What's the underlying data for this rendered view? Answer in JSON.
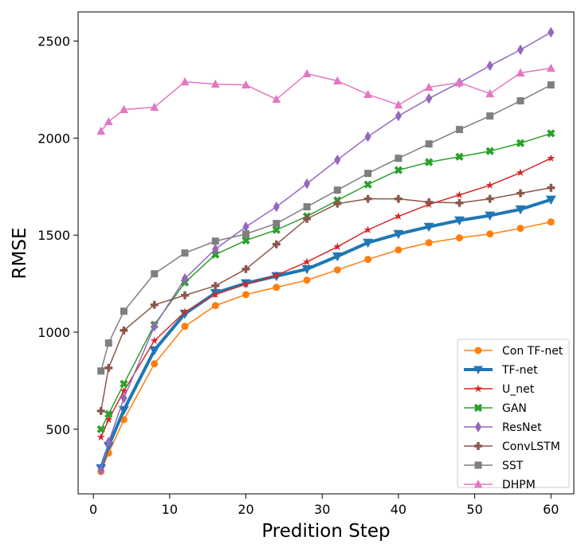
{
  "chart_data": {
    "type": "line",
    "title": "",
    "xlabel": "Predition Step",
    "ylabel": "RMSE",
    "xlim": [
      -2,
      63
    ],
    "ylim": [
      167,
      2650
    ],
    "xticks": [
      0,
      10,
      20,
      30,
      40,
      50,
      60
    ],
    "yticks": [
      500,
      1000,
      1500,
      2000,
      2500
    ],
    "grid": false,
    "legend_position": "lower-right",
    "x": [
      1,
      2,
      4,
      8,
      12,
      16,
      20,
      24,
      28,
      32,
      36,
      40,
      44,
      48,
      52,
      56,
      60
    ],
    "series": [
      {
        "name": "Con TF-net",
        "color": "#ff7f0e",
        "marker": "circle",
        "width": 1.5,
        "values": [
          282,
          377,
          549,
          837,
          1030,
          1137,
          1194,
          1231,
          1268,
          1321,
          1375,
          1424,
          1461,
          1486,
          1506,
          1535,
          1568
        ]
      },
      {
        "name": "TF-net",
        "color": "#1f77b4",
        "marker": "triangle-down",
        "width": 4,
        "values": [
          299,
          414,
          599,
          907,
          1095,
          1202,
          1252,
          1289,
          1325,
          1391,
          1461,
          1506,
          1543,
          1576,
          1601,
          1633,
          1683
        ]
      },
      {
        "name": "U_net",
        "color": "#d62728",
        "marker": "star",
        "width": 1.5,
        "values": [
          459,
          549,
          697,
          956,
          1104,
          1194,
          1247,
          1293,
          1362,
          1440,
          1527,
          1597,
          1658,
          1707,
          1757,
          1822,
          1896
        ]
      },
      {
        "name": "GAN",
        "color": "#2ca02c",
        "marker": "x-filled",
        "width": 1.5,
        "values": [
          500,
          578,
          734,
          1038,
          1256,
          1400,
          1473,
          1527,
          1597,
          1679,
          1761,
          1835,
          1876,
          1904,
          1933,
          1974,
          2024
        ]
      },
      {
        "name": "ResNet",
        "color": "#9467bd",
        "marker": "thin-diamond",
        "width": 1.5,
        "values": [
          290,
          434,
          660,
          1030,
          1276,
          1428,
          1543,
          1646,
          1765,
          1888,
          2007,
          2114,
          2204,
          2286,
          2373,
          2455,
          2545
        ]
      },
      {
        "name": "ConvLSTM",
        "color": "#8c564b",
        "marker": "plus-filled",
        "width": 1.5,
        "values": [
          594,
          816,
          1009,
          1141,
          1190,
          1239,
          1325,
          1453,
          1584,
          1662,
          1687,
          1687,
          1670,
          1666,
          1687,
          1716,
          1744
        ]
      },
      {
        "name": "SST",
        "color": "#7f7f7f",
        "marker": "square",
        "width": 1.5,
        "values": [
          800,
          944,
          1108,
          1301,
          1408,
          1469,
          1506,
          1560,
          1646,
          1732,
          1818,
          1896,
          1970,
          2044,
          2114,
          2192,
          2274
        ]
      },
      {
        "name": "DHPM",
        "color": "#e377c2",
        "marker": "triangle-up",
        "width": 1.5,
        "values": [
          2036,
          2085,
          2147,
          2159,
          2290,
          2278,
          2274,
          2200,
          2332,
          2295,
          2225,
          2171,
          2262,
          2286,
          2229,
          2336,
          2360
        ]
      }
    ]
  }
}
